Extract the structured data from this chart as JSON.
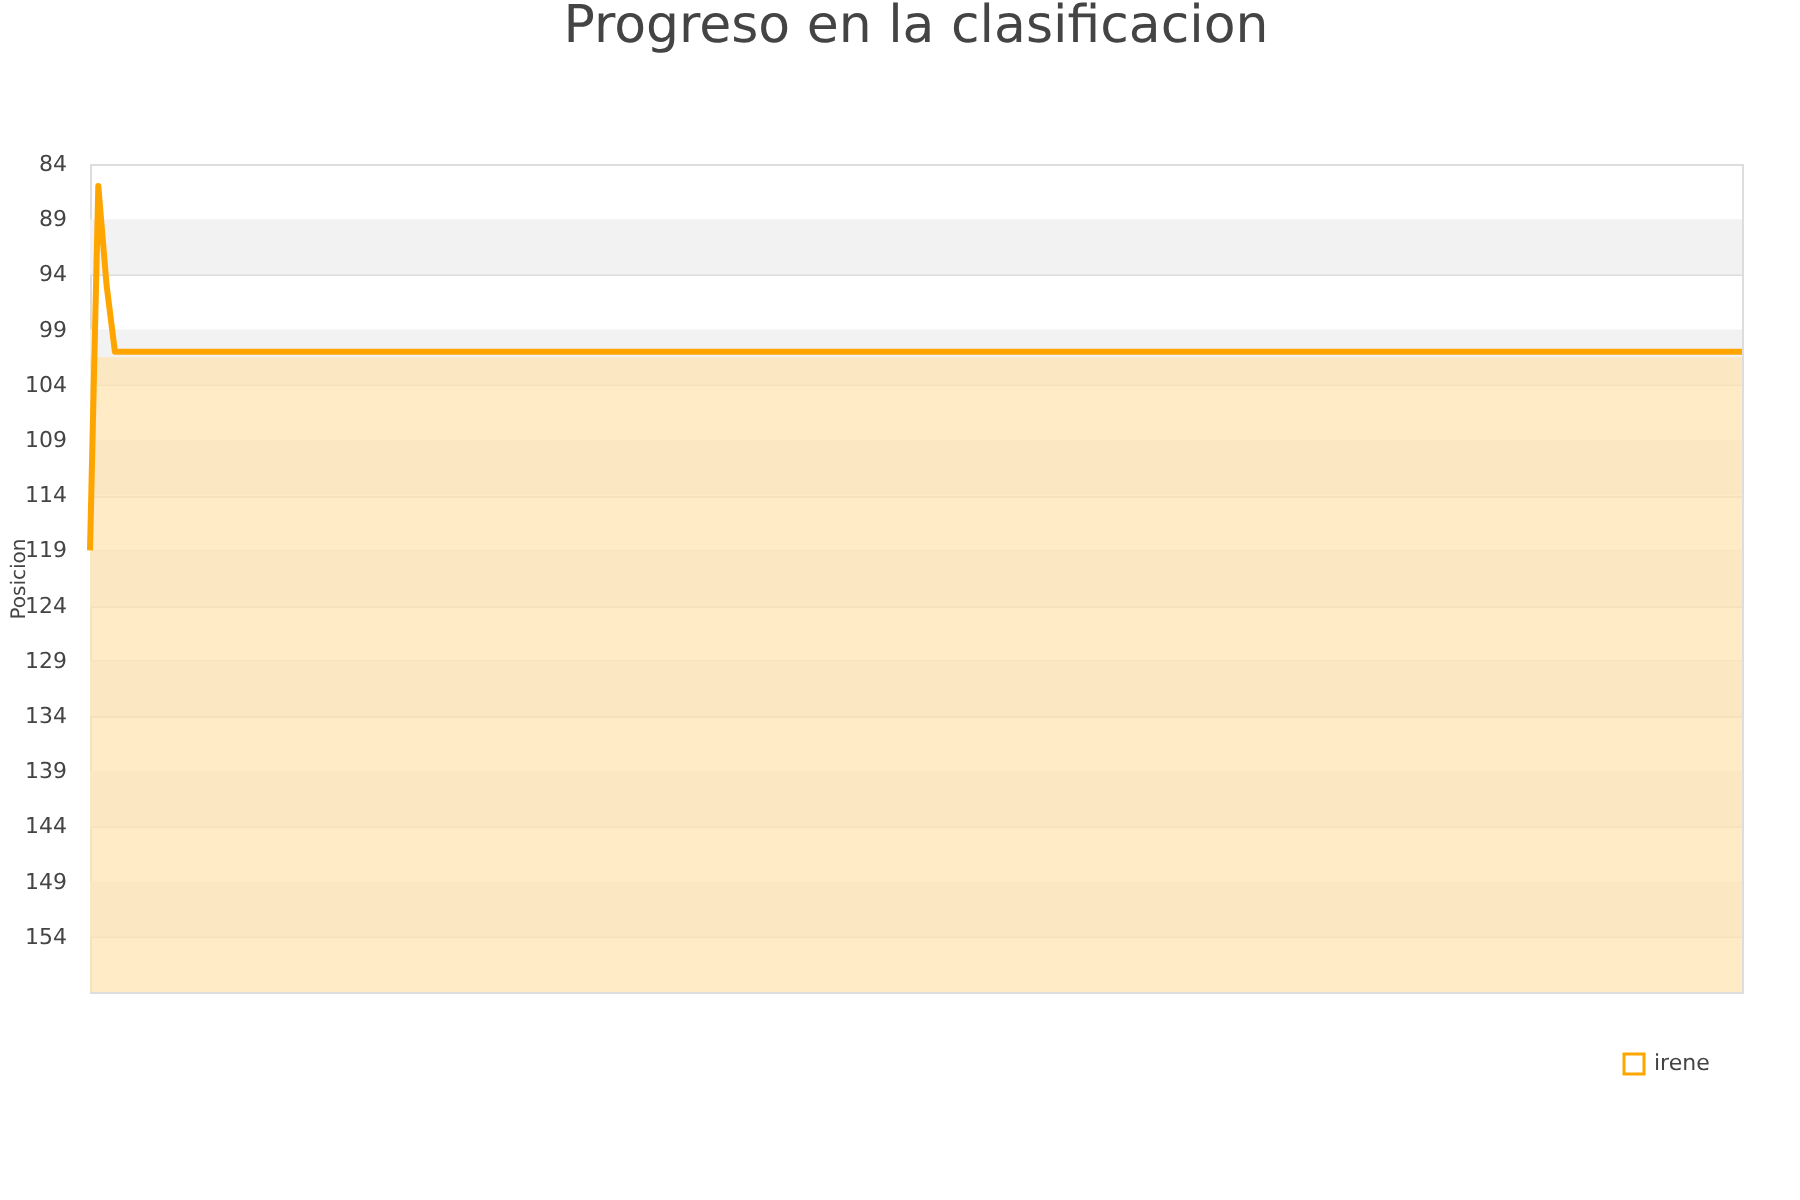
{
  "chart_data": {
    "type": "line",
    "title": "Progreso en la clasificacion",
    "ylabel": "Posicion",
    "categories": [
      null,
      null,
      null,
      null,
      null,
      null,
      null,
      null,
      null,
      null,
      null,
      null,
      null,
      null,
      null,
      null,
      null,
      null,
      null,
      null,
      null,
      null,
      null,
      null,
      null,
      null,
      null,
      null,
      null,
      null,
      null,
      null,
      null,
      null,
      null,
      null,
      null,
      null,
      null,
      null,
      null,
      null,
      null,
      null,
      null,
      null,
      null,
      null,
      null,
      null,
      null,
      null,
      null,
      null,
      null,
      null,
      null,
      null,
      null,
      null,
      null,
      null,
      null,
      null,
      null,
      null,
      null,
      null,
      null,
      null,
      null,
      null,
      null,
      null,
      null,
      null,
      null,
      null,
      null,
      null,
      null,
      null,
      null,
      null,
      null,
      null,
      null,
      null,
      null,
      null,
      null,
      null,
      null,
      null,
      null,
      null,
      null,
      null,
      null,
      null,
      null,
      null,
      null,
      null,
      null,
      null,
      null,
      null,
      null,
      null,
      null,
      null,
      null,
      null,
      null,
      null,
      null,
      null,
      null,
      null,
      null,
      null,
      null,
      null,
      null,
      null,
      null,
      null,
      null,
      null,
      null,
      null,
      null,
      null,
      null,
      null,
      null,
      null,
      null,
      null,
      null,
      null,
      null,
      null,
      null,
      null,
      null,
      null,
      null,
      null,
      null,
      null,
      null,
      null,
      null,
      null,
      null,
      null,
      null,
      null,
      null,
      null,
      null,
      null,
      null,
      null,
      null,
      null,
      null,
      null,
      null,
      null,
      null,
      null,
      null,
      null,
      null,
      null,
      null,
      null,
      null,
      null,
      null,
      null,
      null,
      null,
      null,
      null,
      null,
      null,
      null,
      null,
      null,
      null,
      null,
      null,
      null,
      null,
      null,
      null
    ],
    "series": [
      {
        "name": "irene",
        "color": "#ffa500",
        "values": [
          119,
          86,
          95,
          101,
          101,
          101,
          101,
          101,
          101,
          101,
          101,
          101,
          101,
          101,
          101,
          101,
          101,
          101,
          101,
          101,
          101,
          101,
          101,
          101,
          101,
          101,
          101,
          101,
          101,
          101,
          101,
          101,
          101,
          101,
          101,
          101,
          101,
          101,
          101,
          101,
          101,
          101,
          101,
          101,
          101,
          101,
          101,
          101,
          101,
          101,
          101,
          101,
          101,
          101,
          101,
          101,
          101,
          101,
          101,
          101,
          101,
          101,
          101,
          101,
          101,
          101,
          101,
          101,
          101,
          101,
          101,
          101,
          101,
          101,
          101,
          101,
          101,
          101,
          101,
          101,
          101,
          101,
          101,
          101,
          101,
          101,
          101,
          101,
          101,
          101,
          101,
          101,
          101,
          101,
          101,
          101,
          101,
          101,
          101,
          101,
          101,
          101,
          101,
          101,
          101,
          101,
          101,
          101,
          101,
          101,
          101,
          101,
          101,
          101,
          101,
          101,
          101,
          101,
          101,
          101,
          101,
          101,
          101,
          101,
          101,
          101,
          101,
          101,
          101,
          101,
          101,
          101,
          101,
          101,
          101,
          101,
          101,
          101,
          101,
          101,
          101,
          101,
          101,
          101,
          101,
          101,
          101,
          101,
          101,
          101,
          101,
          101,
          101,
          101,
          101,
          101,
          101,
          101,
          101,
          101,
          101,
          101,
          101,
          101,
          101,
          101,
          101,
          101,
          101,
          101,
          101,
          101,
          101,
          101,
          101,
          101,
          101,
          101,
          101,
          101,
          101,
          101,
          101,
          101,
          101,
          101,
          101,
          101,
          101,
          101,
          101,
          101,
          101,
          101,
          101,
          101,
          101,
          101,
          101,
          101
        ]
      }
    ],
    "ylim": [
      159,
      84
    ],
    "yticks": [
      84,
      89,
      94,
      99,
      104,
      109,
      114,
      119,
      124,
      129,
      134,
      139,
      144,
      149,
      154
    ],
    "grid": "y",
    "legend": "bottom right",
    "bands": [
      {
        "axis": "y",
        "from": 89,
        "to": 94,
        "color": "#f2f2f2"
      },
      {
        "axis": "y",
        "from": 99,
        "to": 104,
        "color": "#f2f2f2"
      },
      {
        "axis": "y",
        "from": 109,
        "to": 114,
        "color": "#f2f2f2"
      },
      {
        "axis": "y",
        "from": 119,
        "to": 124,
        "color": "#f2f2f2"
      },
      {
        "axis": "y",
        "from": 129,
        "to": 134,
        "color": "#f2f2f2"
      },
      {
        "axis": "y",
        "from": 139,
        "to": 144,
        "color": "#f2f2f2"
      },
      {
        "axis": "y",
        "from": 149,
        "to": 154,
        "color": "#f2f2f2"
      },
      {
        "axis": "y",
        "from": 101.5,
        "to": 159,
        "color": "#ffe3ad"
      }
    ]
  }
}
